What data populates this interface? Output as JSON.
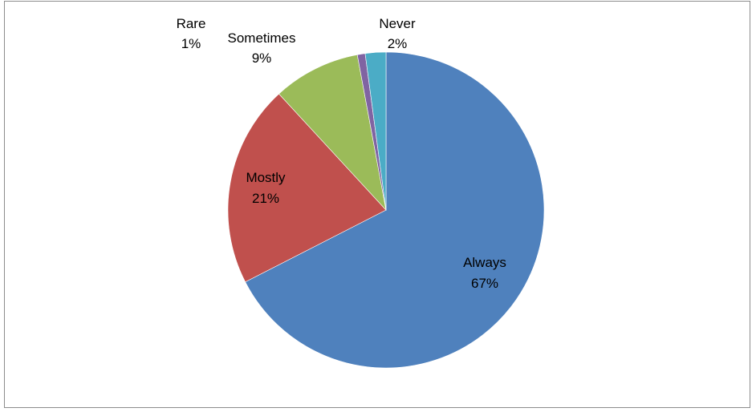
{
  "chart_data": {
    "type": "pie",
    "title": "",
    "start_angle_deg": 0,
    "direction": "clockwise",
    "slices": [
      {
        "label": "Always",
        "percent_label": "67%",
        "value": 67.2,
        "color": "#4F81BD"
      },
      {
        "label": "Mostly",
        "percent_label": "21%",
        "value": 20.6,
        "color": "#C0504D"
      },
      {
        "label": "Sometimes",
        "percent_label": "9%",
        "value": 8.9,
        "color": "#9BBB59"
      },
      {
        "label": "Rare",
        "percent_label": "1%",
        "value": 0.8,
        "color": "#8064A2"
      },
      {
        "label": "Never",
        "percent_label": "2%",
        "value": 2.1,
        "color": "#4BACC6"
      }
    ],
    "legend": "none",
    "data_labels": "category-and-percent"
  }
}
